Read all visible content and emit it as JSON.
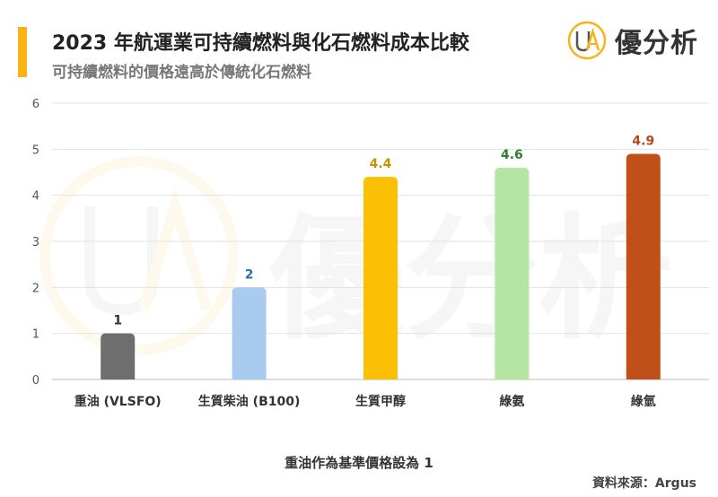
{
  "header": {
    "title": "2023 年航運業可持續燃料與化石燃料成本比較",
    "subtitle": "可持續燃料的價格遠高於傳統化石燃料"
  },
  "logo": {
    "mark_letters": "UA",
    "name": "優分析"
  },
  "chart_data": {
    "type": "bar",
    "categories": [
      "重油 (VLSFO)",
      "生質柴油 (B100)",
      "生質甲醇",
      "綠氨",
      "綠氫"
    ],
    "values": [
      1,
      2,
      4.4,
      4.6,
      4.9
    ],
    "data_labels": [
      "1",
      "2",
      "4.4",
      "4.6",
      "4.9"
    ],
    "bar_colors": [
      "#6E6E6E",
      "#A9CBEF",
      "#FBBF04",
      "#B5E5A2",
      "#C0501A"
    ],
    "label_colors": [
      "#333333",
      "#2F6FB0",
      "#C79200",
      "#2E7D32",
      "#B5461A"
    ],
    "yticks": [
      "0",
      "1",
      "2",
      "3",
      "4",
      "5",
      "6"
    ],
    "ylim": [
      0,
      6
    ],
    "grid": true,
    "legend": "none"
  },
  "footer": {
    "note": "重油作為基準價格設為 1",
    "source": "資料來源：Argus"
  },
  "colors": {
    "accent": "#FBB216",
    "grid": "#E2E2E2"
  }
}
